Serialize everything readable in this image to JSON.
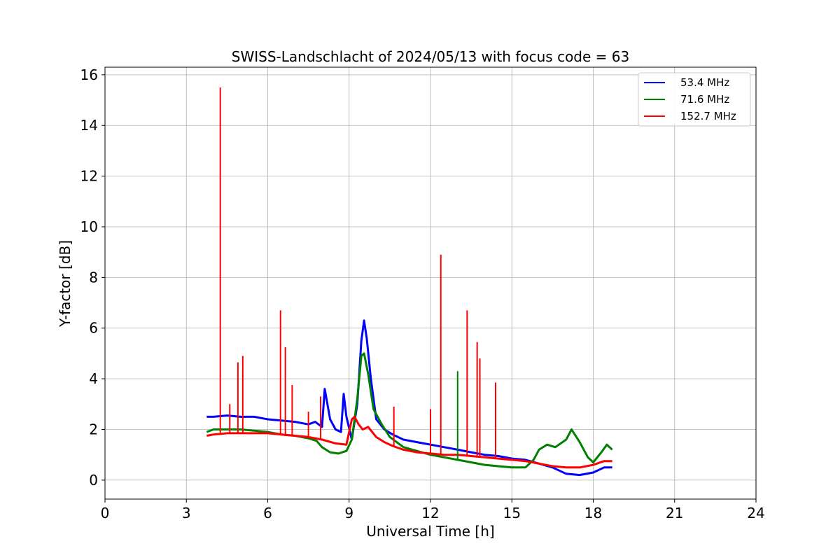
{
  "chart_data": {
    "type": "line",
    "title": "SWISS-Landschlacht of 2024/05/13 with focus code = 63",
    "xlabel": "Universal Time [h]",
    "ylabel": "Y-factor [dB]",
    "xlim": [
      0,
      24
    ],
    "ylim": [
      -0.75,
      16.3
    ],
    "xticks": [
      0,
      3,
      6,
      9,
      12,
      15,
      18,
      21,
      24
    ],
    "yticks": [
      0,
      2,
      4,
      6,
      8,
      10,
      12,
      14,
      16
    ],
    "grid": true,
    "legend_position": "top-right",
    "series": [
      {
        "name": "53.4 MHz",
        "color": "#0000ff",
        "x": [
          3.75,
          4.0,
          4.5,
          5.0,
          5.5,
          6.0,
          6.5,
          7.0,
          7.5,
          7.75,
          8.0,
          8.1,
          8.3,
          8.5,
          8.7,
          8.8,
          8.9,
          9.1,
          9.3,
          9.45,
          9.55,
          9.65,
          9.8,
          10.0,
          10.3,
          10.6,
          11.0,
          11.5,
          12.0,
          12.5,
          13.0,
          13.5,
          14.0,
          14.5,
          15.0,
          15.5,
          16.0,
          16.5,
          17.0,
          17.5,
          18.0,
          18.4,
          18.7
        ],
        "y": [
          2.5,
          2.5,
          2.55,
          2.5,
          2.5,
          2.4,
          2.35,
          2.3,
          2.2,
          2.3,
          2.1,
          3.6,
          2.4,
          2.0,
          1.9,
          3.4,
          2.5,
          1.6,
          3.0,
          5.5,
          6.3,
          5.6,
          4.0,
          2.4,
          2.0,
          1.8,
          1.6,
          1.5,
          1.4,
          1.3,
          1.2,
          1.1,
          1.0,
          0.95,
          0.85,
          0.8,
          0.65,
          0.5,
          0.25,
          0.2,
          0.3,
          0.5,
          0.5
        ]
      },
      {
        "name": "71.6 MHz",
        "color": "#008000",
        "x": [
          3.75,
          4.0,
          4.5,
          5.0,
          5.5,
          6.0,
          6.5,
          7.0,
          7.5,
          7.8,
          8.0,
          8.3,
          8.6,
          8.9,
          9.1,
          9.3,
          9.45,
          9.55,
          9.7,
          9.9,
          10.2,
          10.5,
          11.0,
          11.5,
          12.0,
          12.5,
          13.0,
          13.5,
          14.0,
          14.5,
          15.0,
          15.5,
          15.8,
          16.0,
          16.3,
          16.6,
          17.0,
          17.2,
          17.5,
          17.8,
          18.0,
          18.3,
          18.5,
          18.7
        ],
        "y": [
          1.9,
          2.0,
          2.0,
          2.0,
          1.95,
          1.9,
          1.8,
          1.75,
          1.65,
          1.55,
          1.3,
          1.1,
          1.05,
          1.15,
          1.6,
          3.2,
          4.9,
          5.0,
          4.2,
          2.8,
          2.2,
          1.7,
          1.3,
          1.15,
          1.0,
          0.9,
          0.8,
          0.7,
          0.6,
          0.55,
          0.5,
          0.5,
          0.8,
          1.2,
          1.4,
          1.3,
          1.6,
          2.0,
          1.5,
          0.9,
          0.7,
          1.1,
          1.4,
          1.2
        ]
      },
      {
        "name": "152.7 MHz",
        "color": "#ff0000",
        "x": [
          3.75,
          4.0,
          4.5,
          5.0,
          5.5,
          6.0,
          6.5,
          7.0,
          7.5,
          8.0,
          8.5,
          8.9,
          9.1,
          9.2,
          9.35,
          9.5,
          9.7,
          10.0,
          10.3,
          10.6,
          11.0,
          11.5,
          12.0,
          12.5,
          13.0,
          13.5,
          14.0,
          14.5,
          15.0,
          15.5,
          16.0,
          16.5,
          17.0,
          17.5,
          18.0,
          18.4,
          18.7
        ],
        "y": [
          1.75,
          1.8,
          1.85,
          1.85,
          1.85,
          1.85,
          1.8,
          1.75,
          1.7,
          1.6,
          1.45,
          1.4,
          2.4,
          2.5,
          2.2,
          2.0,
          2.1,
          1.7,
          1.5,
          1.35,
          1.2,
          1.1,
          1.05,
          1.0,
          1.0,
          0.95,
          0.9,
          0.85,
          0.8,
          0.75,
          0.65,
          0.55,
          0.5,
          0.5,
          0.6,
          0.75,
          0.75
        ]
      }
    ],
    "spikes": [
      {
        "series": "152.7 MHz",
        "x": 4.25,
        "y": 15.5
      },
      {
        "series": "152.7 MHz",
        "x": 4.6,
        "y": 3.0
      },
      {
        "series": "152.7 MHz",
        "x": 4.9,
        "y": 4.65
      },
      {
        "series": "152.7 MHz",
        "x": 5.08,
        "y": 4.9
      },
      {
        "series": "152.7 MHz",
        "x": 6.47,
        "y": 6.7
      },
      {
        "series": "152.7 MHz",
        "x": 6.65,
        "y": 5.25
      },
      {
        "series": "152.7 MHz",
        "x": 6.9,
        "y": 3.75
      },
      {
        "series": "152.7 MHz",
        "x": 7.5,
        "y": 2.7
      },
      {
        "series": "152.7 MHz",
        "x": 7.95,
        "y": 3.3
      },
      {
        "series": "152.7 MHz",
        "x": 10.65,
        "y": 2.9
      },
      {
        "series": "152.7 MHz",
        "x": 12.0,
        "y": 2.8
      },
      {
        "series": "152.7 MHz",
        "x": 12.38,
        "y": 8.9
      },
      {
        "series": "152.7 MHz",
        "x": 13.35,
        "y": 6.7
      },
      {
        "series": "152.7 MHz",
        "x": 13.72,
        "y": 5.45
      },
      {
        "series": "152.7 MHz",
        "x": 13.82,
        "y": 4.8
      },
      {
        "series": "152.7 MHz",
        "x": 14.4,
        "y": 3.85
      },
      {
        "series": "71.6 MHz",
        "x": 13.0,
        "y": 4.3
      }
    ]
  }
}
